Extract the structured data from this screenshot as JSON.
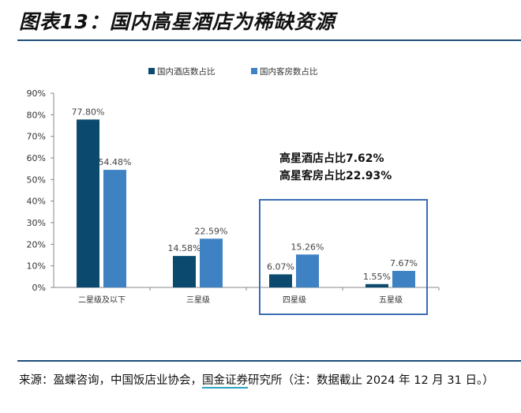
{
  "title": "图表13：国内高星酒店为稀缺资源",
  "source_prefix": "来源：盈蝶咨询，中国饭店业协会，",
  "source_brand": "国金证券",
  "source_suffix": "研究所（注：数据截止 2024 年 12 月 31 日。）",
  "chart_data": {
    "type": "bar",
    "categories": [
      "二星级及以下",
      "三星级",
      "四星级",
      "五星级"
    ],
    "series": [
      {
        "name": "国内酒店数占比",
        "values": [
          77.8,
          14.58,
          6.07,
          1.55
        ],
        "labels": [
          "77.80%",
          "14.58%",
          "6.07%",
          "1.55%"
        ],
        "color": "#0b4a6e"
      },
      {
        "name": "国内客房数占比",
        "values": [
          54.48,
          22.59,
          15.26,
          7.67
        ],
        "labels": [
          "54.48%",
          "22.59%",
          "15.26%",
          "7.67%"
        ],
        "color": "#3f82c4"
      }
    ],
    "ylim": [
      0,
      90
    ],
    "yticks": [
      "0%",
      "10%",
      "20%",
      "30%",
      "40%",
      "50%",
      "60%",
      "70%",
      "80%",
      "90%"
    ],
    "legend": "top",
    "grid": false,
    "annotation": [
      "高星酒店占比7.62%",
      "高星客房占比22.93%"
    ],
    "highlight_box_color": "#3b6db3"
  }
}
